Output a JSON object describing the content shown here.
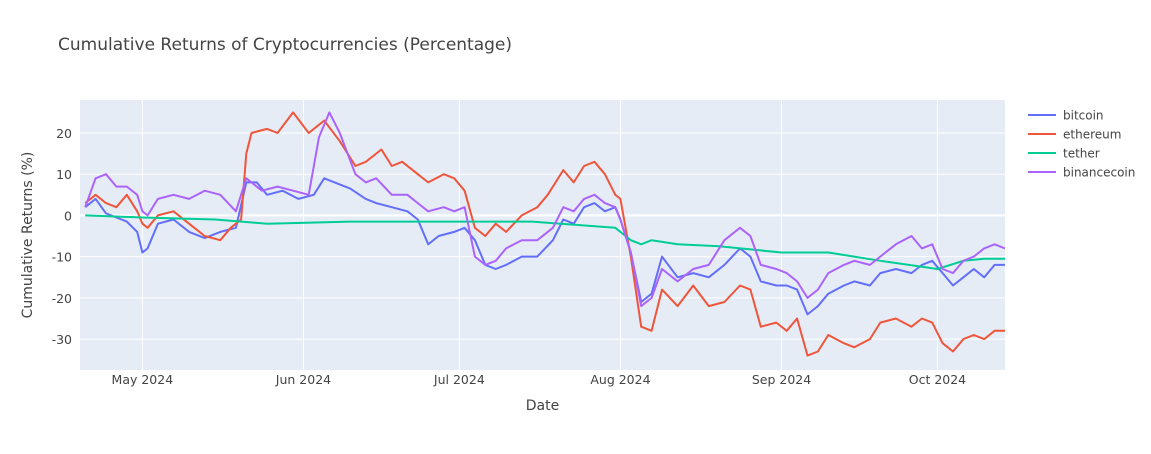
{
  "chart_data": {
    "type": "line",
    "title": "Cumulative Returns of Cryptocurrencies (Percentage)",
    "xlabel": "Date",
    "ylabel": "Cumulative Returns (%)",
    "x_range": [
      "2024-04-19",
      "2024-10-14"
    ],
    "ylim": [
      -37.5,
      28
    ],
    "y_ticks": [
      -30,
      -20,
      -10,
      0,
      10,
      20
    ],
    "x_ticks": [
      {
        "date": "2024-05-01",
        "label": "May 2024"
      },
      {
        "date": "2024-06-01",
        "label": "Jun 2024"
      },
      {
        "date": "2024-07-01",
        "label": "Jul 2024"
      },
      {
        "date": "2024-08-01",
        "label": "Aug 2024"
      },
      {
        "date": "2024-09-01",
        "label": "Sep 2024"
      },
      {
        "date": "2024-10-01",
        "label": "Oct 2024"
      }
    ],
    "grid": true,
    "legend_position": "right",
    "series": [
      {
        "name": "bitcoin",
        "color": "#636efa",
        "points": [
          [
            "2024-04-20",
            2
          ],
          [
            "2024-04-22",
            4
          ],
          [
            "2024-04-24",
            0.5
          ],
          [
            "2024-04-26",
            -0.5
          ],
          [
            "2024-04-28",
            -1.5
          ],
          [
            "2024-04-30",
            -4
          ],
          [
            "2024-05-01",
            -9
          ],
          [
            "2024-05-02",
            -8
          ],
          [
            "2024-05-04",
            -2
          ],
          [
            "2024-05-07",
            -1
          ],
          [
            "2024-05-10",
            -4
          ],
          [
            "2024-05-13",
            -5.5
          ],
          [
            "2024-05-16",
            -4
          ],
          [
            "2024-05-19",
            -3
          ],
          [
            "2024-05-21",
            8
          ],
          [
            "2024-05-23",
            8
          ],
          [
            "2024-05-25",
            5
          ],
          [
            "2024-05-28",
            6
          ],
          [
            "2024-05-31",
            4
          ],
          [
            "2024-06-03",
            5
          ],
          [
            "2024-06-05",
            9
          ],
          [
            "2024-06-07",
            8
          ],
          [
            "2024-06-10",
            6.5
          ],
          [
            "2024-06-13",
            4
          ],
          [
            "2024-06-15",
            3
          ],
          [
            "2024-06-18",
            2
          ],
          [
            "2024-06-21",
            1
          ],
          [
            "2024-06-23",
            -1
          ],
          [
            "2024-06-25",
            -7
          ],
          [
            "2024-06-27",
            -5
          ],
          [
            "2024-06-30",
            -4
          ],
          [
            "2024-07-02",
            -3
          ],
          [
            "2024-07-04",
            -6
          ],
          [
            "2024-07-06",
            -12
          ],
          [
            "2024-07-08",
            -13
          ],
          [
            "2024-07-10",
            -12
          ],
          [
            "2024-07-13",
            -10
          ],
          [
            "2024-07-16",
            -10
          ],
          [
            "2024-07-19",
            -6
          ],
          [
            "2024-07-21",
            -1
          ],
          [
            "2024-07-23",
            -2
          ],
          [
            "2024-07-25",
            2
          ],
          [
            "2024-07-27",
            3
          ],
          [
            "2024-07-29",
            1
          ],
          [
            "2024-07-31",
            2
          ],
          [
            "2024-08-01",
            -1
          ],
          [
            "2024-08-03",
            -9
          ],
          [
            "2024-08-05",
            -21
          ],
          [
            "2024-08-07",
            -19
          ],
          [
            "2024-08-09",
            -10
          ],
          [
            "2024-08-12",
            -15
          ],
          [
            "2024-08-15",
            -14
          ],
          [
            "2024-08-18",
            -15
          ],
          [
            "2024-08-21",
            -12
          ],
          [
            "2024-08-24",
            -8
          ],
          [
            "2024-08-26",
            -10
          ],
          [
            "2024-08-28",
            -16
          ],
          [
            "2024-08-31",
            -17
          ],
          [
            "2024-09-02",
            -17
          ],
          [
            "2024-09-04",
            -18
          ],
          [
            "2024-09-06",
            -24
          ],
          [
            "2024-09-08",
            -22
          ],
          [
            "2024-09-10",
            -19
          ],
          [
            "2024-09-13",
            -17
          ],
          [
            "2024-09-15",
            -16
          ],
          [
            "2024-09-18",
            -17
          ],
          [
            "2024-09-20",
            -14
          ],
          [
            "2024-09-23",
            -13
          ],
          [
            "2024-09-26",
            -14
          ],
          [
            "2024-09-28",
            -12
          ],
          [
            "2024-09-30",
            -11
          ],
          [
            "2024-10-02",
            -14
          ],
          [
            "2024-10-04",
            -17
          ],
          [
            "2024-10-06",
            -15
          ],
          [
            "2024-10-08",
            -13
          ],
          [
            "2024-10-10",
            -15
          ],
          [
            "2024-10-12",
            -12
          ],
          [
            "2024-10-14",
            -12
          ]
        ]
      },
      {
        "name": "ethereum",
        "color": "#ef553b",
        "points": [
          [
            "2024-04-20",
            3
          ],
          [
            "2024-04-22",
            5
          ],
          [
            "2024-04-24",
            3
          ],
          [
            "2024-04-26",
            2
          ],
          [
            "2024-04-28",
            5
          ],
          [
            "2024-04-30",
            1
          ],
          [
            "2024-05-01",
            -2
          ],
          [
            "2024-05-02",
            -3
          ],
          [
            "2024-05-04",
            0
          ],
          [
            "2024-05-07",
            1
          ],
          [
            "2024-05-10",
            -2
          ],
          [
            "2024-05-13",
            -5
          ],
          [
            "2024-05-16",
            -6
          ],
          [
            "2024-05-18",
            -3
          ],
          [
            "2024-05-20",
            -1
          ],
          [
            "2024-05-21",
            15
          ],
          [
            "2024-05-22",
            20
          ],
          [
            "2024-05-25",
            21
          ],
          [
            "2024-05-27",
            20
          ],
          [
            "2024-05-30",
            25
          ],
          [
            "2024-06-02",
            20
          ],
          [
            "2024-06-05",
            23
          ],
          [
            "2024-06-08",
            18
          ],
          [
            "2024-06-11",
            12
          ],
          [
            "2024-06-13",
            13
          ],
          [
            "2024-06-16",
            16
          ],
          [
            "2024-06-18",
            12
          ],
          [
            "2024-06-20",
            13
          ],
          [
            "2024-06-23",
            10
          ],
          [
            "2024-06-25",
            8
          ],
          [
            "2024-06-28",
            10
          ],
          [
            "2024-06-30",
            9
          ],
          [
            "2024-07-02",
            6
          ],
          [
            "2024-07-04",
            -3
          ],
          [
            "2024-07-06",
            -5
          ],
          [
            "2024-07-08",
            -2
          ],
          [
            "2024-07-10",
            -4
          ],
          [
            "2024-07-13",
            0
          ],
          [
            "2024-07-16",
            2
          ],
          [
            "2024-07-18",
            5
          ],
          [
            "2024-07-21",
            11
          ],
          [
            "2024-07-23",
            8
          ],
          [
            "2024-07-25",
            12
          ],
          [
            "2024-07-27",
            13
          ],
          [
            "2024-07-29",
            10
          ],
          [
            "2024-07-31",
            5
          ],
          [
            "2024-08-01",
            4
          ],
          [
            "2024-08-03",
            -10
          ],
          [
            "2024-08-05",
            -27
          ],
          [
            "2024-08-07",
            -28
          ],
          [
            "2024-08-09",
            -18
          ],
          [
            "2024-08-12",
            -22
          ],
          [
            "2024-08-15",
            -17
          ],
          [
            "2024-08-18",
            -22
          ],
          [
            "2024-08-21",
            -21
          ],
          [
            "2024-08-24",
            -17
          ],
          [
            "2024-08-26",
            -18
          ],
          [
            "2024-08-28",
            -27
          ],
          [
            "2024-08-31",
            -26
          ],
          [
            "2024-09-02",
            -28
          ],
          [
            "2024-09-04",
            -25
          ],
          [
            "2024-09-06",
            -34
          ],
          [
            "2024-09-08",
            -33
          ],
          [
            "2024-09-10",
            -29
          ],
          [
            "2024-09-13",
            -31
          ],
          [
            "2024-09-15",
            -32
          ],
          [
            "2024-09-18",
            -30
          ],
          [
            "2024-09-20",
            -26
          ],
          [
            "2024-09-23",
            -25
          ],
          [
            "2024-09-26",
            -27
          ],
          [
            "2024-09-28",
            -25
          ],
          [
            "2024-09-30",
            -26
          ],
          [
            "2024-10-02",
            -31
          ],
          [
            "2024-10-04",
            -33
          ],
          [
            "2024-10-06",
            -30
          ],
          [
            "2024-10-08",
            -29
          ],
          [
            "2024-10-10",
            -30
          ],
          [
            "2024-10-12",
            -28
          ],
          [
            "2024-10-14",
            -28
          ]
        ]
      },
      {
        "name": "tether",
        "color": "#00cc96",
        "points": [
          [
            "2024-04-20",
            0
          ],
          [
            "2024-05-01",
            -0.5
          ],
          [
            "2024-05-15",
            -1
          ],
          [
            "2024-05-25",
            -2
          ],
          [
            "2024-06-10",
            -1.5
          ],
          [
            "2024-06-25",
            -1.5
          ],
          [
            "2024-07-15",
            -1.5
          ],
          [
            "2024-07-31",
            -3
          ],
          [
            "2024-08-01",
            -4
          ],
          [
            "2024-08-03",
            -6
          ],
          [
            "2024-08-05",
            -7
          ],
          [
            "2024-08-07",
            -6
          ],
          [
            "2024-08-12",
            -7
          ],
          [
            "2024-08-20",
            -7.5
          ],
          [
            "2024-09-01",
            -9
          ],
          [
            "2024-09-10",
            -9
          ],
          [
            "2024-09-20",
            -11
          ],
          [
            "2024-10-01",
            -13
          ],
          [
            "2024-10-06",
            -11
          ],
          [
            "2024-10-10",
            -10.5
          ],
          [
            "2024-10-14",
            -10.5
          ]
        ]
      },
      {
        "name": "binancecoin",
        "color": "#ab63fa",
        "points": [
          [
            "2024-04-20",
            2
          ],
          [
            "2024-04-22",
            9
          ],
          [
            "2024-04-24",
            10
          ],
          [
            "2024-04-26",
            7
          ],
          [
            "2024-04-28",
            7
          ],
          [
            "2024-04-30",
            5
          ],
          [
            "2024-05-01",
            1
          ],
          [
            "2024-05-02",
            0
          ],
          [
            "2024-05-04",
            4
          ],
          [
            "2024-05-07",
            5
          ],
          [
            "2024-05-10",
            4
          ],
          [
            "2024-05-13",
            6
          ],
          [
            "2024-05-16",
            5
          ],
          [
            "2024-05-19",
            1
          ],
          [
            "2024-05-21",
            9
          ],
          [
            "2024-05-24",
            6
          ],
          [
            "2024-05-27",
            7
          ],
          [
            "2024-05-30",
            6
          ],
          [
            "2024-06-02",
            5
          ],
          [
            "2024-06-04",
            19
          ],
          [
            "2024-06-06",
            25
          ],
          [
            "2024-06-08",
            20
          ],
          [
            "2024-06-11",
            10
          ],
          [
            "2024-06-13",
            8
          ],
          [
            "2024-06-15",
            9
          ],
          [
            "2024-06-18",
            5
          ],
          [
            "2024-06-21",
            5
          ],
          [
            "2024-06-23",
            3
          ],
          [
            "2024-06-25",
            1
          ],
          [
            "2024-06-28",
            2
          ],
          [
            "2024-06-30",
            1
          ],
          [
            "2024-07-02",
            2
          ],
          [
            "2024-07-04",
            -10
          ],
          [
            "2024-07-06",
            -12
          ],
          [
            "2024-07-08",
            -11
          ],
          [
            "2024-07-10",
            -8
          ],
          [
            "2024-07-13",
            -6
          ],
          [
            "2024-07-16",
            -6
          ],
          [
            "2024-07-19",
            -3
          ],
          [
            "2024-07-21",
            2
          ],
          [
            "2024-07-23",
            1
          ],
          [
            "2024-07-25",
            4
          ],
          [
            "2024-07-27",
            5
          ],
          [
            "2024-07-29",
            3
          ],
          [
            "2024-07-31",
            2
          ],
          [
            "2024-08-01",
            -1
          ],
          [
            "2024-08-03",
            -9
          ],
          [
            "2024-08-05",
            -22
          ],
          [
            "2024-08-07",
            -20
          ],
          [
            "2024-08-09",
            -13
          ],
          [
            "2024-08-12",
            -16
          ],
          [
            "2024-08-15",
            -13
          ],
          [
            "2024-08-18",
            -12
          ],
          [
            "2024-08-21",
            -6
          ],
          [
            "2024-08-24",
            -3
          ],
          [
            "2024-08-26",
            -5
          ],
          [
            "2024-08-28",
            -12
          ],
          [
            "2024-08-31",
            -13
          ],
          [
            "2024-09-02",
            -14
          ],
          [
            "2024-09-04",
            -16
          ],
          [
            "2024-09-06",
            -20
          ],
          [
            "2024-09-08",
            -18
          ],
          [
            "2024-09-10",
            -14
          ],
          [
            "2024-09-13",
            -12
          ],
          [
            "2024-09-15",
            -11
          ],
          [
            "2024-09-18",
            -12
          ],
          [
            "2024-09-20",
            -10
          ],
          [
            "2024-09-23",
            -7
          ],
          [
            "2024-09-26",
            -5
          ],
          [
            "2024-09-28",
            -8
          ],
          [
            "2024-09-30",
            -7
          ],
          [
            "2024-10-02",
            -13
          ],
          [
            "2024-10-04",
            -14
          ],
          [
            "2024-10-06",
            -11
          ],
          [
            "2024-10-08",
            -10
          ],
          [
            "2024-10-10",
            -8
          ],
          [
            "2024-10-12",
            -7
          ],
          [
            "2024-10-14",
            -8
          ]
        ]
      }
    ]
  }
}
